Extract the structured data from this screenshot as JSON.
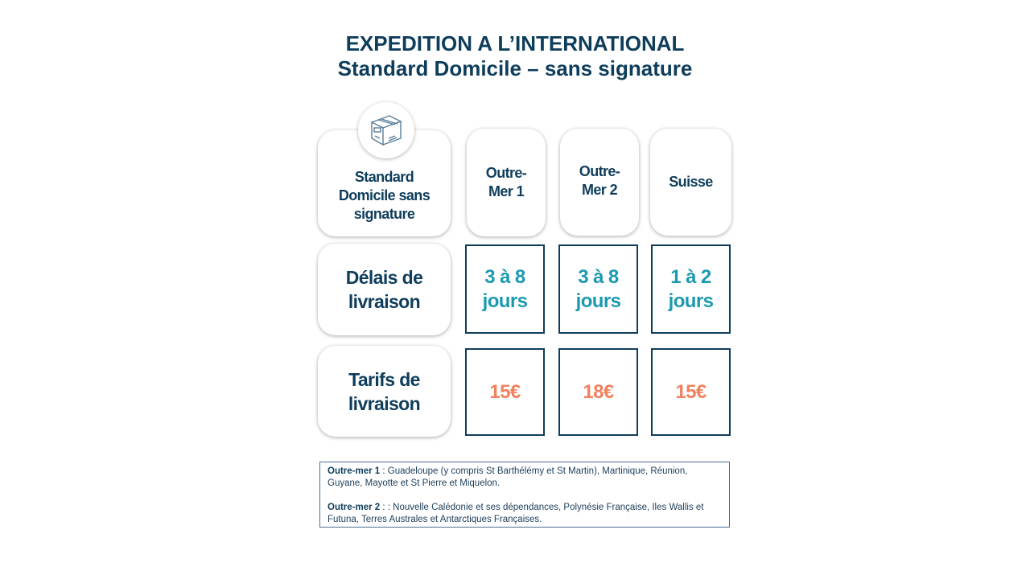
{
  "title": {
    "line1": "EXPEDITION A L’INTERNATIONAL",
    "line2": "Standard Domicile – sans signature"
  },
  "icon": "package-box-icon",
  "columns": {
    "service": "Standard Domicile sans signature",
    "zones": [
      "Outre-Mer 1",
      "Outre-Mer 2",
      "Suisse"
    ]
  },
  "rows": [
    {
      "label": "Délais de livraison",
      "values": [
        "3 à 8 jours",
        "3 à 8 jours",
        "1 à 2 jours"
      ]
    },
    {
      "label": "Tarifs de livraison",
      "values": [
        "15€",
        "18€",
        "15€"
      ]
    }
  ],
  "legend": [
    {
      "term": "Outre-mer 1",
      "text": " : Guadeloupe (y compris St Barthélémy et St Martin), Martinique, Réunion, Guyane, Mayotte et St Pierre et Miquelon."
    },
    {
      "term": "Outre-mer 2",
      "text": " : : Nouvelle Calédonie et ses dépendances,  Polynésie Française, Iles Wallis et Futuna, Terres Australes et Antarctiques Françaises."
    }
  ],
  "colors": {
    "navy": "#0e3d5c",
    "teal": "#1b9ab0",
    "salmon": "#f2815f"
  }
}
